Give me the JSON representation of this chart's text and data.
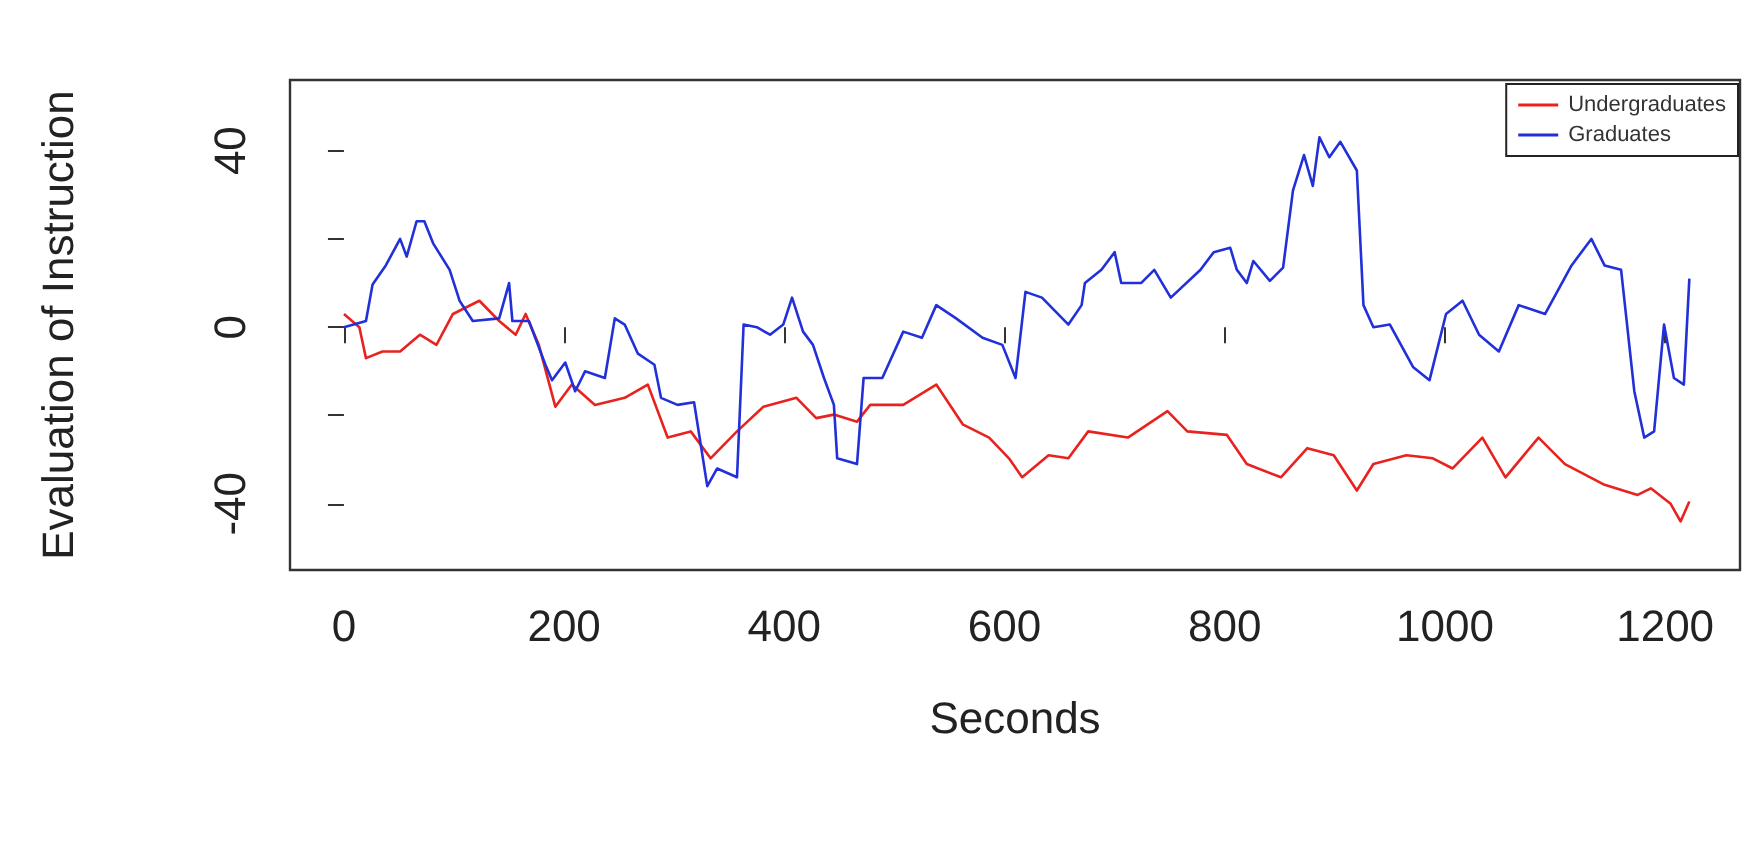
{
  "chart_data": {
    "type": "line",
    "xlabel": "Seconds",
    "ylabel": "Evaluation of Instruction",
    "xlim": [
      -49,
      1268
    ],
    "ylim": [
      -55,
      56
    ],
    "xticks": [
      0,
      200,
      400,
      600,
      800,
      1000,
      1200
    ],
    "yticks": [
      -40,
      {
        "value": -20,
        "label": null
      },
      0,
      {
        "value": 20,
        "label": null
      },
      40
    ],
    "grid": false,
    "legend": "top right",
    "marker": "none",
    "line_style": "solid",
    "series": [
      {
        "name": "Undergraduates",
        "color": "#e8231f",
        "x": [
          0,
          14,
          20,
          35,
          51,
          69,
          84,
          99,
          123,
          141,
          156,
          165,
          177,
          192,
          207,
          228,
          255,
          276,
          294,
          315,
          333,
          357,
          381,
          411,
          429,
          445,
          466,
          478,
          508,
          538,
          562,
          586,
          604,
          616,
          640,
          658,
          676,
          712,
          748,
          766,
          802,
          820,
          851,
          875,
          899,
          920,
          935,
          965,
          989,
          1007,
          1034,
          1055,
          1085,
          1109,
          1145,
          1175,
          1187,
          1205,
          1214,
          1222
        ],
        "values": [
          3,
          0,
          -7,
          -5.5,
          -5.5,
          -1.7,
          -4,
          3,
          6,
          1.4,
          -1.7,
          3,
          -4,
          -18,
          -13,
          -17.6,
          -16,
          -13,
          -25,
          -23.6,
          -29.7,
          -23.6,
          -18,
          -16,
          -20.6,
          -19.8,
          -21.4,
          -17.6,
          -17.6,
          -13,
          -22,
          -25,
          -29.7,
          -34,
          -29,
          -29.7,
          -23.6,
          -25,
          -19,
          -23.6,
          -24.4,
          -31,
          -34,
          -27.4,
          -29,
          -37,
          -31,
          -29,
          -29.7,
          -32,
          -25,
          -34,
          -25,
          -31,
          -35.7,
          -38,
          -36.5,
          -40,
          -44,
          -39.5
        ]
      },
      {
        "name": "Graduates",
        "color": "#2130d8",
        "x": [
          0,
          20,
          26,
          38,
          51,
          57,
          66,
          73,
          81,
          96,
          105,
          117,
          141,
          150,
          153,
          168,
          183,
          189,
          201,
          210,
          219,
          237,
          246,
          255,
          267,
          282,
          288,
          303,
          318,
          330,
          339,
          357,
          363,
          375,
          387,
          399,
          407,
          417,
          426,
          436,
          445,
          448,
          466,
          472,
          489,
          508,
          525,
          538,
          556,
          580,
          598,
          610,
          619,
          634,
          658,
          670,
          673,
          688,
          700,
          706,
          724,
          736,
          751,
          778,
          790,
          805,
          811,
          820,
          826,
          841,
          853,
          862,
          872,
          880,
          886,
          895,
          905,
          920,
          926,
          935,
          950,
          971,
          986,
          1001,
          1016,
          1031,
          1049,
          1067,
          1091,
          1115,
          1133,
          1145,
          1160,
          1172,
          1181,
          1190,
          1199,
          1208,
          1217,
          1222
        ],
        "values": [
          0,
          1.4,
          9.7,
          14,
          20,
          16,
          24,
          24,
          19,
          13,
          6,
          1.4,
          2,
          10,
          1.4,
          1.4,
          -8.5,
          -12,
          -8,
          -14.5,
          -10,
          -11.5,
          2,
          0.6,
          -6,
          -8.5,
          -16,
          -17.6,
          -17,
          -36,
          -32,
          -34,
          0.6,
          0,
          -1.7,
          0.6,
          6.7,
          -1,
          -4,
          -11.5,
          -17.6,
          -29.7,
          -31,
          -11.5,
          -11.5,
          -1,
          -2.4,
          5,
          2,
          -2.4,
          -4,
          -11.5,
          8,
          6.7,
          0.6,
          5,
          10,
          13,
          17,
          10,
          10,
          13,
          6.7,
          13,
          17,
          18,
          13,
          10,
          15,
          10.5,
          13.5,
          31,
          39,
          32,
          43,
          38.5,
          42,
          35.5,
          5,
          0,
          0.6,
          -9,
          -12,
          3,
          6,
          -1.7,
          -5.5,
          5,
          3,
          14,
          20,
          14,
          13,
          -14.5,
          -25,
          -23.6,
          0.6,
          -11.5,
          -13,
          11
        ]
      }
    ]
  }
}
